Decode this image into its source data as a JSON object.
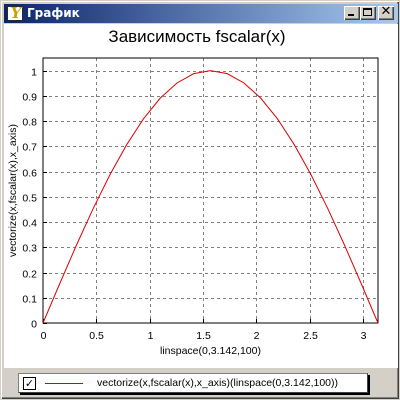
{
  "window": {
    "title": "График",
    "icon": "chart-app-icon",
    "icon_glyph": "Y",
    "buttons": {
      "minimize": "minimize-icon",
      "maximize": "maximize-icon",
      "close": "close-icon",
      "close_glyph": "✕"
    }
  },
  "legend": {
    "checked": true,
    "check_glyph": "✓",
    "label": "vectorize(x,fscalar(x),x_axis)(linspace(0,3.142,100))",
    "line_color": "#e00000"
  },
  "chart_data": {
    "type": "line",
    "title": "Зависимость fscalar(x)",
    "xlabel": "linspace(0,3.142,100)",
    "ylabel": "vectorize(x,fscalar(x),x_axis)",
    "xlim": [
      0,
      3.142
    ],
    "ylim": [
      0,
      1.05
    ],
    "xticks": [
      0,
      0.5,
      1,
      1.5,
      2,
      2.5,
      3
    ],
    "xtick_labels": [
      "0",
      "0.5",
      "1",
      "1.5",
      "2",
      "2.5",
      "3"
    ],
    "yticks": [
      0,
      0.1,
      0.2,
      0.3,
      0.4,
      0.5,
      0.6,
      0.7,
      0.8,
      0.9,
      1
    ],
    "ytick_labels": [
      "0",
      "0.1",
      "0.2",
      "0.3",
      "0.4",
      "0.5",
      "0.6",
      "0.7",
      "0.8",
      "0.9",
      "1"
    ],
    "grid": true,
    "grid_style": "dashed",
    "legend_position": "bottom",
    "series": [
      {
        "name": "vectorize(x,fscalar(x),x_axis)(linspace(0,3.142,100))",
        "color": "#e00000",
        "x": [
          0,
          0.1571,
          0.3142,
          0.4712,
          0.6283,
          0.7854,
          0.9425,
          1.0996,
          1.2566,
          1.4137,
          1.5708,
          1.7279,
          1.885,
          2.042,
          2.1991,
          2.3562,
          2.5133,
          2.6704,
          2.8274,
          2.9845,
          3.1416
        ],
        "y": [
          0,
          0.156,
          0.309,
          0.454,
          0.588,
          0.707,
          0.809,
          0.891,
          0.951,
          0.988,
          1.0,
          0.988,
          0.951,
          0.891,
          0.809,
          0.707,
          0.588,
          0.454,
          0.309,
          0.156,
          0
        ]
      }
    ]
  }
}
